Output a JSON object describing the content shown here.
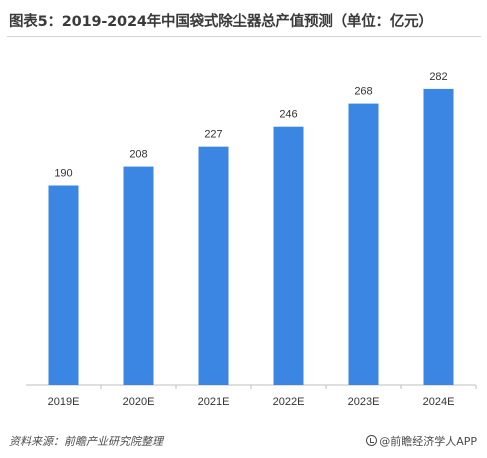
{
  "title": "图表5：2019-2024年中国袋式除尘器总产值预测（单位：亿元）",
  "source": "资料来源：前瞻产业研究院整理",
  "brand": "@前瞻经济学人APP",
  "colors": {
    "bar": "#3a86e2",
    "axis": "#bfbfbf",
    "label": "#333333"
  },
  "chart_data": {
    "type": "bar",
    "categories": [
      "2019E",
      "2020E",
      "2021E",
      "2022E",
      "2023E",
      "2024E"
    ],
    "values": [
      190,
      208,
      227,
      246,
      268,
      282
    ],
    "xlabel": "",
    "ylabel": "",
    "ylim": [
      0,
      300
    ],
    "grid": false,
    "legend": "none"
  }
}
